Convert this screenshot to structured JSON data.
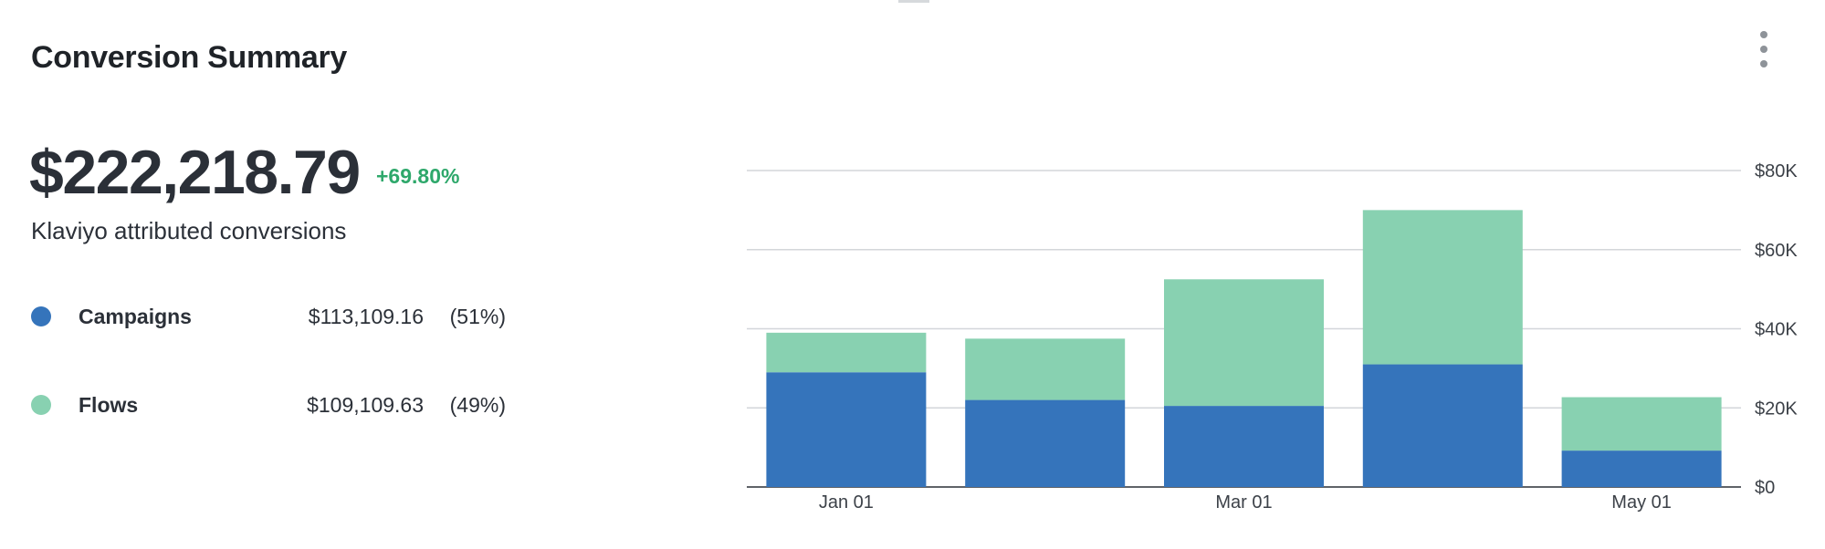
{
  "card": {
    "title": "Conversion Summary",
    "total": "$222,218.79",
    "change": "+69.80%",
    "subtitle": "Klaviyo attributed conversions"
  },
  "legend": [
    {
      "name": "Campaigns",
      "value": "$113,109.16",
      "pct": "(51%)",
      "color": "#3574bb"
    },
    {
      "name": "Flows",
      "value": "$109,109.63",
      "pct": "(49%)",
      "color": "#88d1b1"
    }
  ],
  "icons": {
    "menu": "kebab-menu-icon"
  },
  "chart_data": {
    "type": "bar",
    "stacked": true,
    "categories": [
      "Jan 01",
      "",
      "Mar 01",
      "",
      "May 01"
    ],
    "x_tick_labels": [
      "Jan 01",
      "Mar 01",
      "May 01"
    ],
    "series": [
      {
        "name": "Campaigns",
        "color": "#3574bb",
        "values": [
          29000,
          22000,
          20500,
          31000,
          9200
        ]
      },
      {
        "name": "Flows",
        "color": "#88d1b1",
        "values": [
          10000,
          15500,
          32000,
          39000,
          13500
        ]
      }
    ],
    "ylim": [
      0,
      80000
    ],
    "y_ticks": [
      0,
      20000,
      40000,
      60000,
      80000
    ],
    "y_tick_labels": [
      "$0",
      "$20K",
      "$40K",
      "$60K",
      "$80K"
    ],
    "y_axis_position": "right",
    "grid": true,
    "title": "",
    "xlabel": "",
    "ylabel": ""
  }
}
